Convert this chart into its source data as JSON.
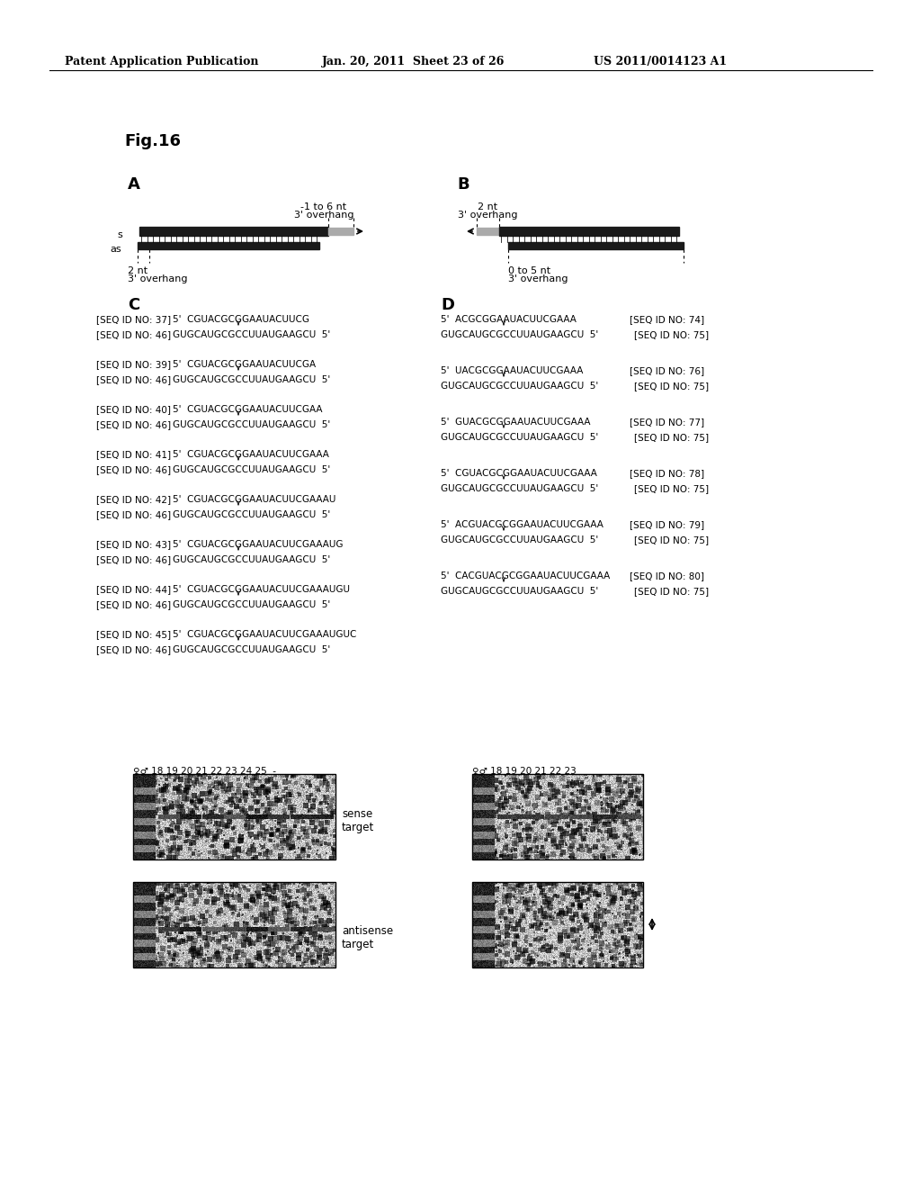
{
  "header_left": "Patent Application Publication",
  "header_center": "Jan. 20, 2011  Sheet 23 of 26",
  "header_right": "US 2011/0014123 A1",
  "fig_label": "Fig.16",
  "panel_A_label": "A",
  "panel_B_label": "B",
  "panel_C_label": "C",
  "panel_D_label": "D",
  "A_top_annotation": "-1 to 6 nt\n3' overhang",
  "A_bottom_annotation": "2 nt\n3' overhang",
  "B_top_annotation": "2 nt\n3' overhang",
  "B_bottom_annotation": "0 to 5 nt\n3' overhang",
  "sense_label": "s",
  "antisense_label": "as",
  "C_sequences": [
    {
      "id1": "[SEQ ID NO: 37]",
      "label1": "5'  CGUACGCGGAAUACUUCG",
      "seq2_id": "[SEQ ID NO: 46]",
      "seq2": "GUGCAUGCGCCUUAUGAAGCU  5'"
    },
    {
      "id1": "[SEQ ID NO: 39]",
      "label1": "5'  CGUACGCGGAAUACUUCGA",
      "seq2_id": "[SEQ ID NO: 46]",
      "seq2": "GUGCAUGCGCCUUAUGAAGCU  5'"
    },
    {
      "id1": "[SEQ ID NO: 40]",
      "label1": "5'  CGUACGCGGAAUACUUCGAA",
      "seq2_id": "[SEQ ID NO: 46]",
      "seq2": "GUGCAUGCGCCUUAUGAAGCU  5'"
    },
    {
      "id1": "[SEQ ID NO: 41]",
      "label1": "5'  CGUACGCGGAAUACUUCGAAA",
      "seq2_id": "[SEQ ID NO: 46]",
      "seq2": "GUGCAUGCGCCUUAUGAAGCU  5'"
    },
    {
      "id1": "[SEQ ID NO: 42]",
      "label1": "5'  CGUACGCGGAAUACUUCGAAAU",
      "seq2_id": "[SEQ ID NO: 46]",
      "seq2": "GUGCAUGCGCCUUAUGAAGCU  5'"
    },
    {
      "id1": "[SEQ ID NO: 43]",
      "label1": "5'  CGUACGCGGAAUACUUCGAAAUG",
      "seq2_id": "[SEQ ID NO: 46]",
      "seq2": "GUGCAUGCGCCUUAUGAAGCU  5'"
    },
    {
      "id1": "[SEQ ID NO: 44]",
      "label1": "5'  CGUACGCGGAAUACUUCGAAAUGU",
      "seq2_id": "[SEQ ID NO: 46]",
      "seq2": "GUGCAUGCGCCUUAUGAAGCU  5'"
    },
    {
      "id1": "[SEQ ID NO: 45]",
      "label1": "5'  CGUACGCGGAAUACUUCGAAAUGUC",
      "seq2_id": "[SEQ ID NO: 46]",
      "seq2": "GUGCAUGCGCCUUAUGAAGCU  5'"
    }
  ],
  "D_sequences": [
    {
      "label1": "5'  ACGCGGAAUACUUCGAAA",
      "id1": "[SEQ ID NO: 74]",
      "seq2": "GUGCAUGCGCCUUAUGAAGCU  5'",
      "id2": "[SEQ ID NO: 75]"
    },
    {
      "label1": "5'  UACGCGGAAUACUUCGAAA",
      "id1": "[SEQ ID NO: 76]",
      "seq2": "GUGCAUGCGCCUUAUGAAGCU  5'",
      "id2": "[SEQ ID NO: 75]"
    },
    {
      "label1": "5'  GUACGCGGAAUACUUCGAAA",
      "id1": "[SEQ ID NO: 77]",
      "seq2": "GUGCAUGCGCCUUAUGAAGCU  5'",
      "id2": "[SEQ ID NO: 75]"
    },
    {
      "label1": "5'  CGUACGCGGAAUACUUCGAAA",
      "id1": "[SEQ ID NO: 78]",
      "seq2": "GUGCAUGCGCCUUAUGAAGCU  5'",
      "id2": "[SEQ ID NO: 75]"
    },
    {
      "label1": "5'  ACGUACGCGGAAUACUUCGAAA",
      "id1": "[SEQ ID NO: 79]",
      "seq2": "GUGCAUGCGCCUUAUGAAGCU  5'",
      "id2": "[SEQ ID NO: 75]"
    },
    {
      "label1": "5'  CACGUACGCGGAAUACUUCGAAA",
      "id1": "[SEQ ID NO: 80]",
      "seq2": "GUGCAUGCGCCUUAUGAAGCU  5'",
      "id2": "[SEQ ID NO: 75]"
    }
  ],
  "sense_target_label": "sense\ntarget",
  "antisense_target_label": "antisense\ntarget",
  "bg_color": "#ffffff",
  "text_color": "#000000"
}
